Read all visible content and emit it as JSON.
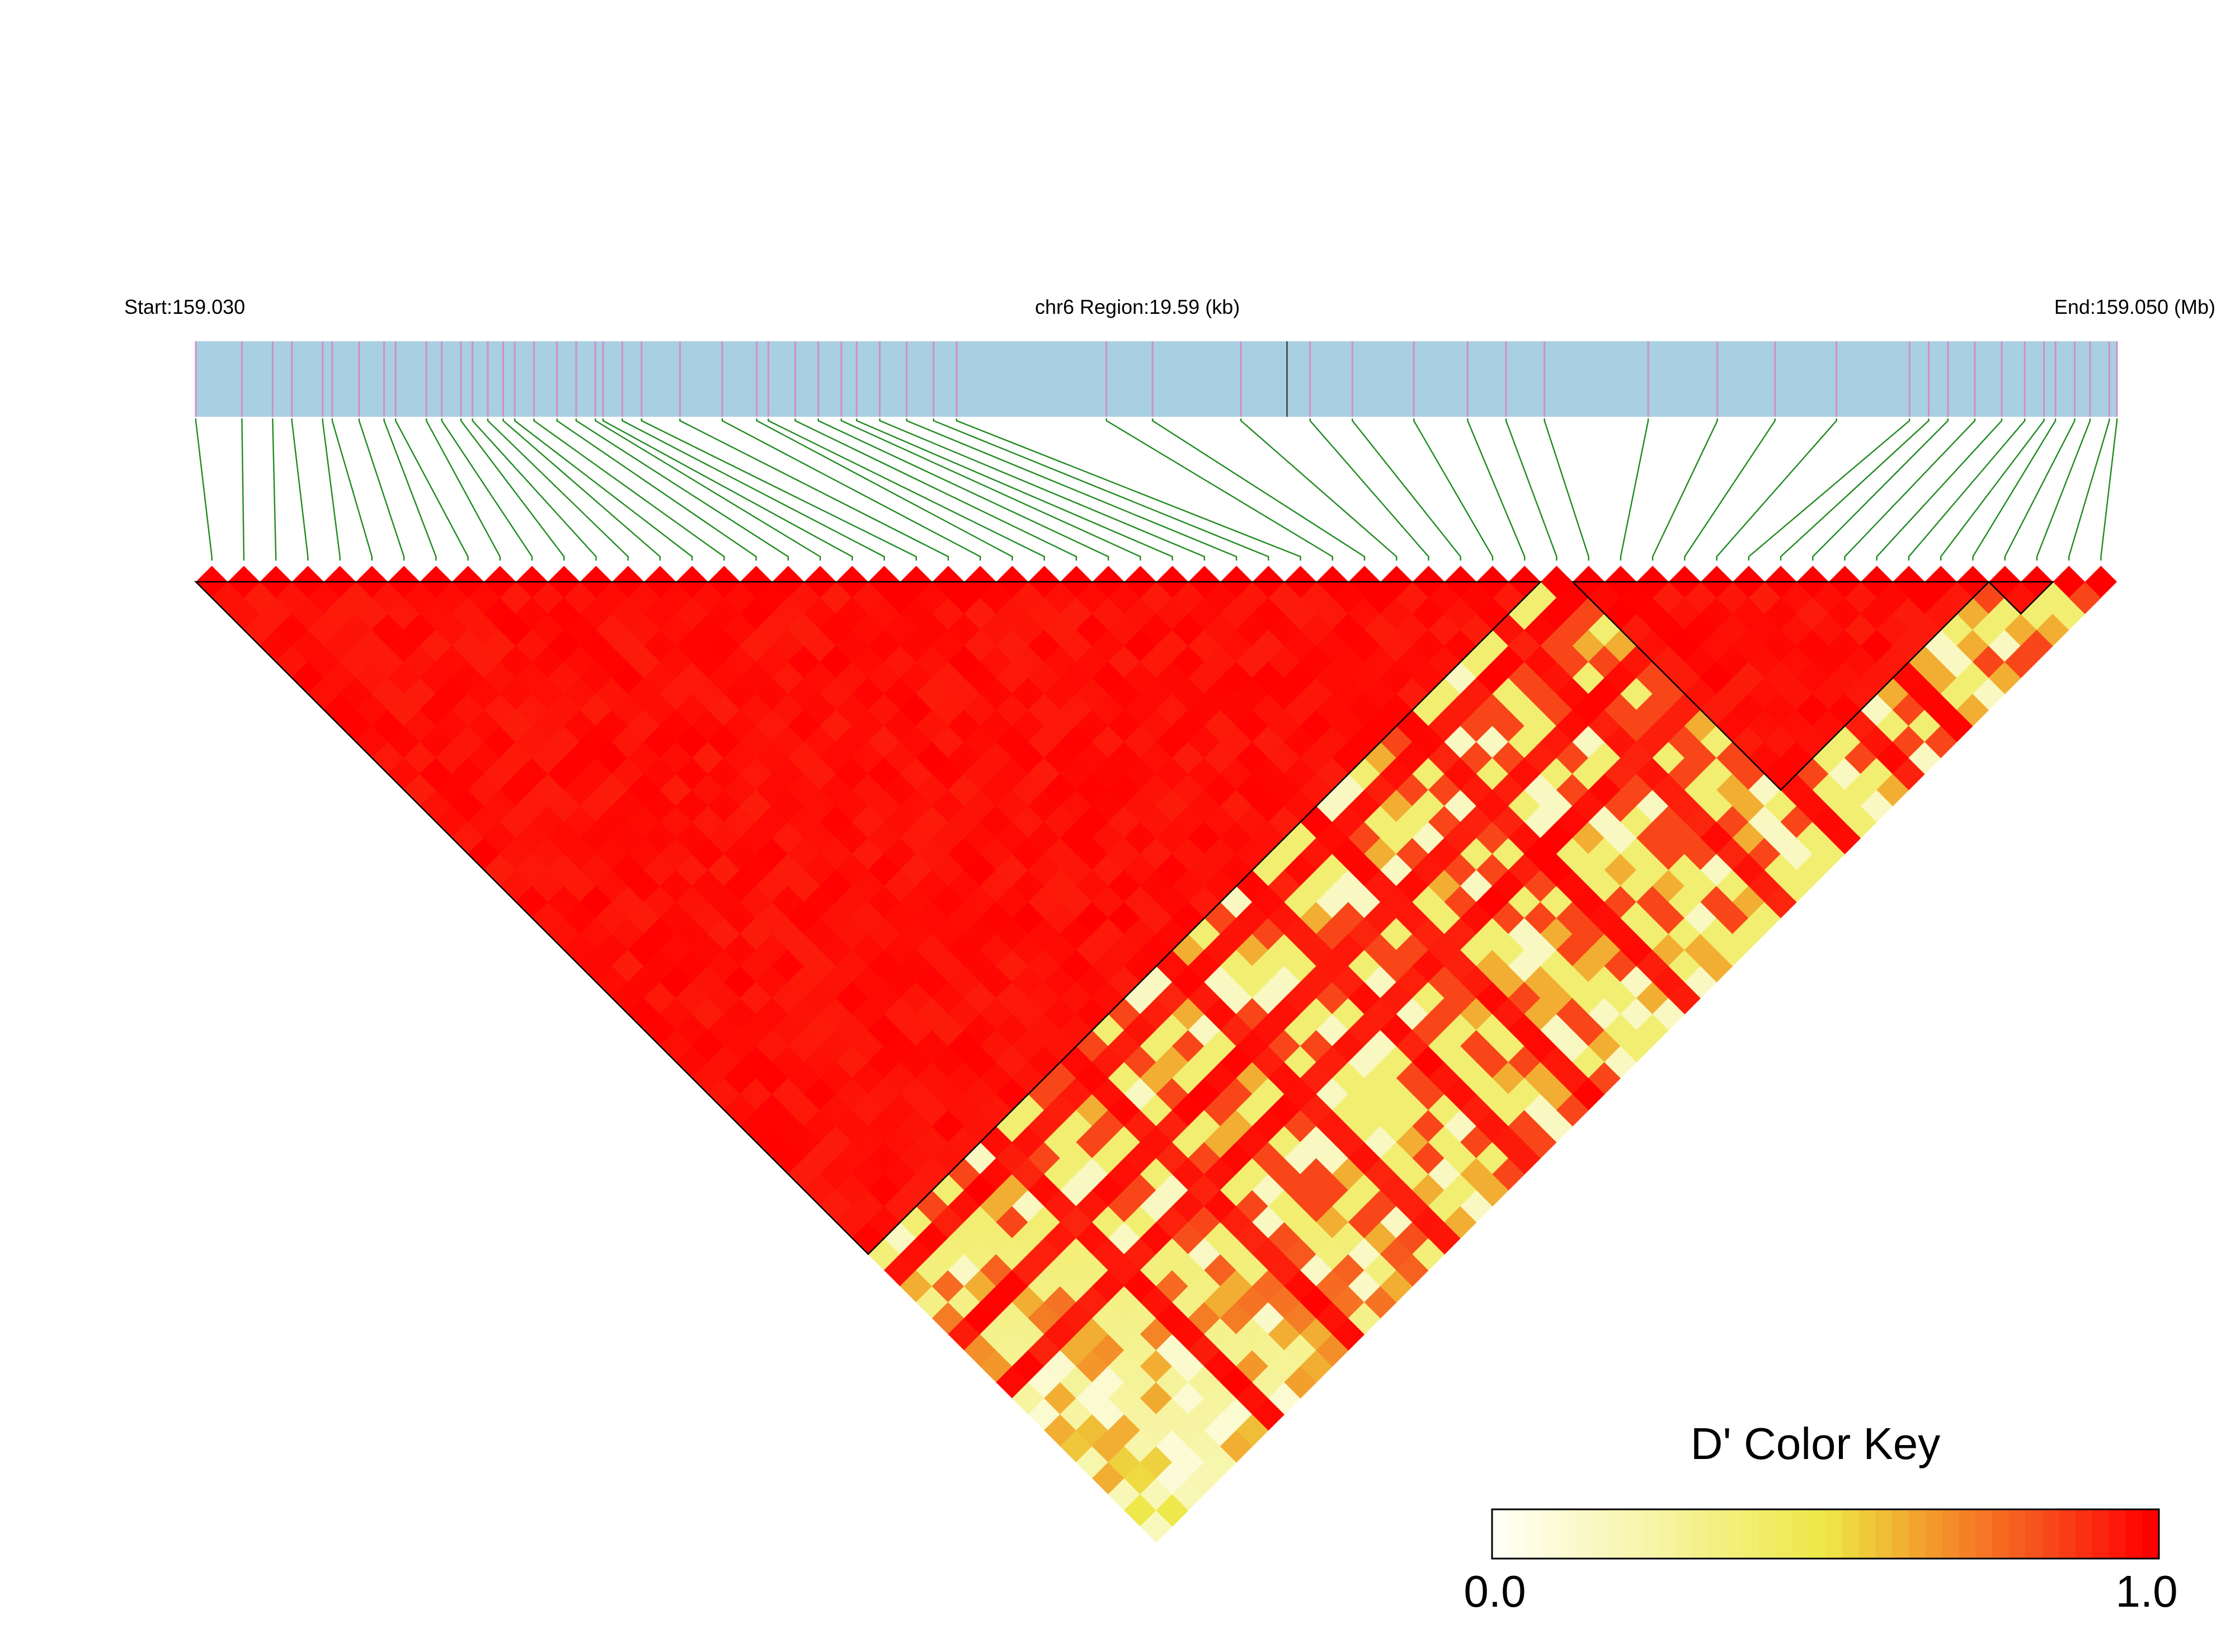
{
  "header": {
    "start_label": "Start:159.030",
    "region_label": "chr6 Region:19.59 (kb)",
    "end_label": "End:159.050 (Mb)"
  },
  "colors": {
    "track_fill": "#a9cfe3",
    "snp_tick": "#d08fc8",
    "connector": "#1f8a1f",
    "ld_high": "#ff0000",
    "ld_mid": "#ee7f2a",
    "ld_low": "#eeee88",
    "ld_none": "#fffff5",
    "block_border": "#000000"
  },
  "snps": {
    "count": 60,
    "positions": [
      0.0,
      0.024,
      0.04,
      0.05,
      0.066,
      0.071,
      0.085,
      0.098,
      0.104,
      0.12,
      0.128,
      0.138,
      0.144,
      0.152,
      0.16,
      0.166,
      0.176,
      0.188,
      0.198,
      0.208,
      0.212,
      0.222,
      0.232,
      0.252,
      0.274,
      0.292,
      0.298,
      0.312,
      0.324,
      0.336,
      0.344,
      0.356,
      0.37,
      0.384,
      0.396,
      0.474,
      0.498,
      0.544,
      0.58,
      0.602,
      0.634,
      0.662,
      0.682,
      0.702,
      0.756,
      0.792,
      0.822,
      0.854,
      0.996,
      1.0,
      0.912,
      0.926,
      0.94,
      0.952,
      0.978,
      0.892,
      0.902,
      0.986,
      0.962,
      0.968
    ],
    "dark_tick_position": 0.568
  },
  "ld_blocks": [
    {
      "from": 1,
      "to": 42
    },
    {
      "from": 44,
      "to": 56
    },
    {
      "from": 57,
      "to": 58
    }
  ],
  "color_key": {
    "title": "D' Color Key",
    "min_label": "0.0",
    "max_label": "1.0",
    "min": 0.0,
    "max": 1.0
  }
}
